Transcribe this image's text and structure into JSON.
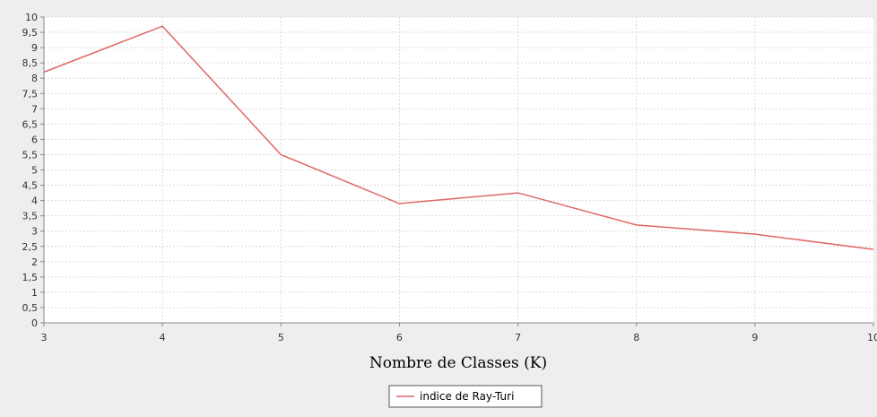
{
  "chart_data": {
    "type": "line",
    "title": "",
    "xlabel": "Nombre de Classes (K)",
    "ylabel": "",
    "x": [
      3,
      4,
      5,
      6,
      7,
      8,
      9,
      10
    ],
    "x_ticks": [
      "3",
      "4",
      "5",
      "6",
      "7",
      "8",
      "9",
      "10"
    ],
    "y_ticks": [
      "0",
      "0,5",
      "1",
      "1,5",
      "2",
      "2,5",
      "3",
      "3,5",
      "4",
      "4,5",
      "5",
      "5,5",
      "6",
      "6,5",
      "7",
      "7,5",
      "8",
      "8,5",
      "9",
      "9,5",
      "10"
    ],
    "xlim": [
      3,
      10
    ],
    "ylim": [
      0,
      10
    ],
    "grid": true,
    "legend_position": "bottom-center",
    "series": [
      {
        "name": "indice de Ray-Turi",
        "color": "#e06666",
        "values": [
          8.2,
          9.7,
          5.5,
          3.9,
          4.25,
          3.2,
          2.9,
          2.4
        ]
      }
    ]
  },
  "colors": {
    "background": "#eeeeee",
    "plot_background": "#ffffff",
    "grid": "#d9d9d9",
    "axis": "#888888"
  }
}
